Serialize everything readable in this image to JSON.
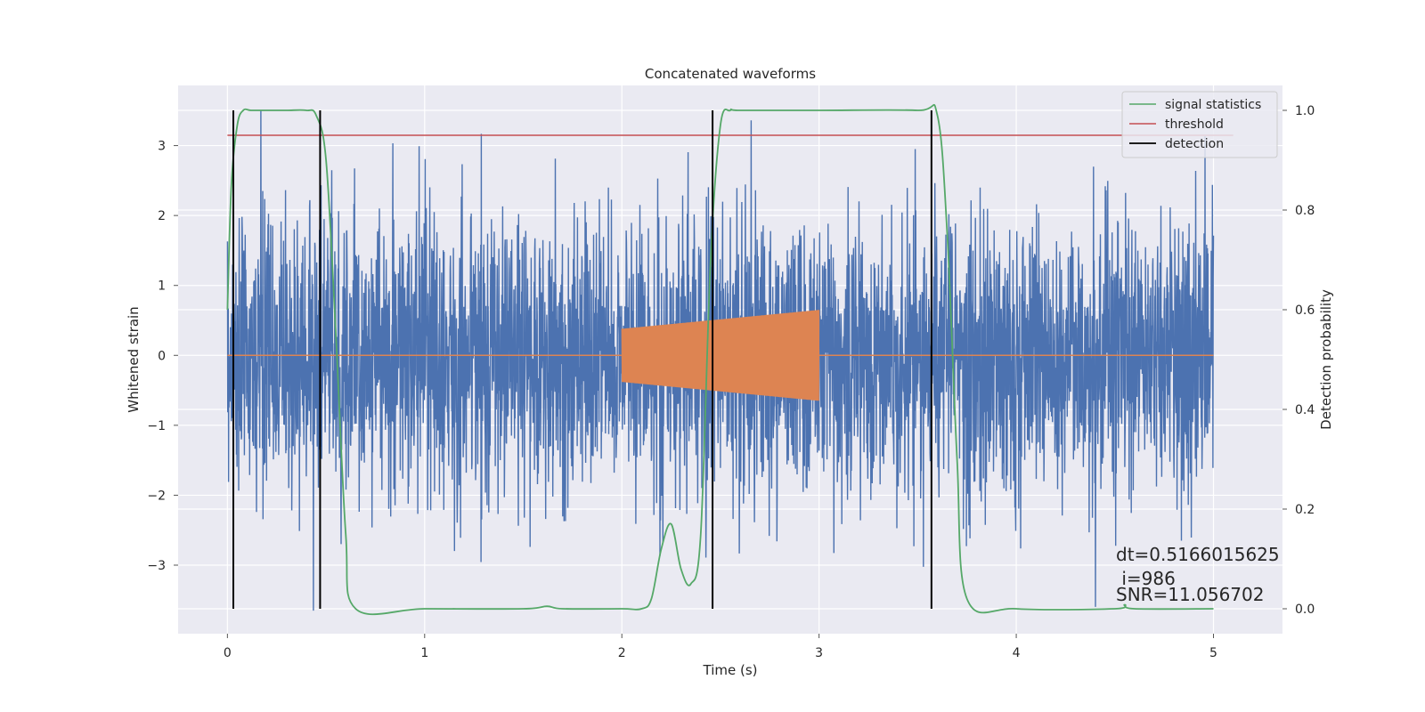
{
  "chart_data": {
    "type": "line",
    "title": "Concatenated waveforms",
    "xlabel": "Time (s)",
    "ylabel": "Whitened strain",
    "ylabel_right": "Detection probability",
    "xlim": [
      -0.25,
      5.35
    ],
    "ylim": [
      -3.98,
      3.86
    ],
    "ylim_right": [
      -0.05,
      1.05
    ],
    "xticks": [
      0,
      1,
      2,
      3,
      4,
      5
    ],
    "yticks": [
      -3,
      -2,
      -1,
      0,
      1,
      2,
      3
    ],
    "yticks_right": [
      0.0,
      0.2,
      0.4,
      0.6,
      0.8,
      1.0
    ],
    "grid": true,
    "legend_position": "top-right",
    "colors": {
      "strain": "#4c72b0",
      "injection": "#dd8452",
      "signal": "#55a868",
      "threshold": "#c44e52",
      "detection": "#000000",
      "background": "#eaeaf2",
      "grid": "#ffffff"
    },
    "series": [
      {
        "name": "",
        "axis": "left",
        "kind": "whitened-strain-noise",
        "x_range": [
          0,
          5
        ],
        "typical_amplitude": 1.0,
        "max": 3.5,
        "min": -3.65
      },
      {
        "name": "",
        "axis": "left",
        "kind": "injected-chirp",
        "x_range": [
          2.0,
          3.0
        ],
        "amplitude_start": 0.38,
        "amplitude_end": 0.65,
        "baseline": 0
      },
      {
        "name": "signal statistics",
        "axis": "right",
        "x": [
          0,
          0.02,
          0.05,
          0.08,
          0.12,
          0.2,
          0.3,
          0.4,
          0.45,
          0.5,
          0.55,
          0.6,
          0.65,
          1.0,
          1.5,
          1.62,
          1.7,
          2.0,
          2.1,
          2.15,
          2.2,
          2.25,
          2.3,
          2.35,
          2.4,
          2.45,
          2.5,
          2.55,
          2.6,
          3.0,
          3.5,
          3.6,
          3.65,
          3.7,
          3.75,
          4.0,
          4.5,
          4.55,
          4.6,
          5.0
        ],
        "values": [
          0.6,
          0.85,
          0.97,
          1.0,
          1.0,
          1.0,
          1.0,
          1.0,
          0.99,
          0.9,
          0.55,
          0.15,
          0.0,
          0.0,
          0.0,
          0.005,
          0.0,
          0.0,
          0.0,
          0.02,
          0.12,
          0.17,
          0.08,
          0.05,
          0.15,
          0.7,
          0.97,
          1.0,
          1.0,
          1.0,
          1.0,
          0.99,
          0.75,
          0.3,
          0.02,
          0.0,
          0.0,
          0.008,
          0.0,
          0.0
        ]
      },
      {
        "name": "threshold",
        "axis": "right",
        "x": [
          0,
          5.1
        ],
        "values": [
          0.95,
          0.95
        ]
      },
      {
        "name": "detection",
        "axis": "right",
        "kind": "vertical-lines",
        "x": [
          0.03,
          0.47,
          2.46,
          3.57
        ],
        "y_range": [
          0.0,
          1.0
        ]
      }
    ],
    "legend": [
      "signal statistics",
      "threshold",
      "detection"
    ],
    "annotations": [
      "dt=0.5166015625",
      " i=986",
      "SNR=11.056702"
    ]
  }
}
